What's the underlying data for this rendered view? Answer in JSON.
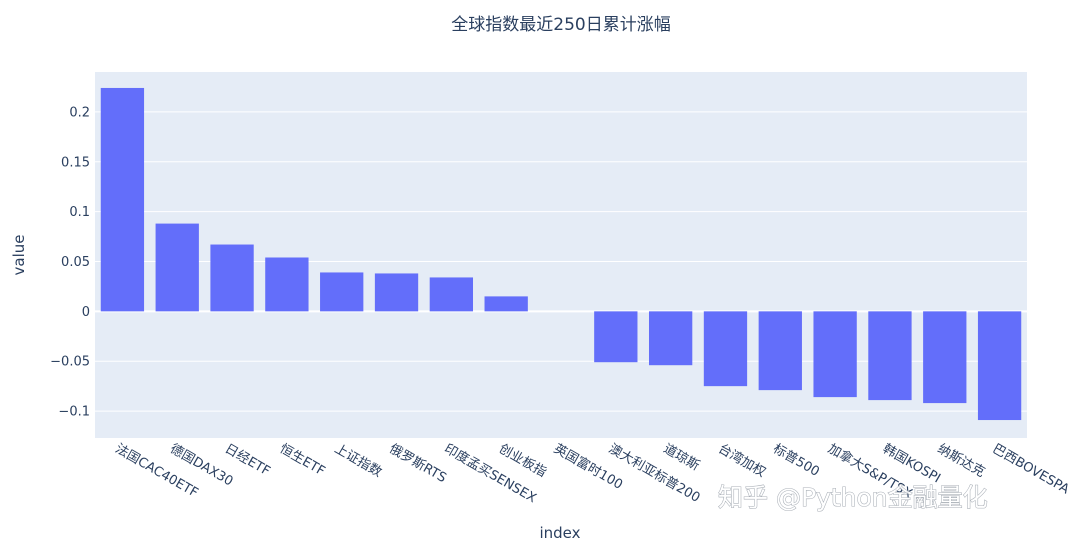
{
  "chart_data": {
    "type": "bar",
    "title": "全球指数最近250日累计涨幅",
    "xlabel": "index",
    "ylabel": "value",
    "categories": [
      "法国CAC40ETF",
      "德国DAX30",
      "日经ETF",
      "恒生ETF",
      "上证指数",
      "俄罗斯RTS",
      "印度孟买SENSEX",
      "创业板指",
      "英国富时100",
      "澳大利亚标普200",
      "道琼斯",
      "台湾加权",
      "标普500",
      "加拿大S&P/TSX",
      "韩国KOSPI",
      "纳斯达克",
      "巴西BOVESPA"
    ],
    "values": [
      0.224,
      0.088,
      0.067,
      0.054,
      0.039,
      0.038,
      0.034,
      0.015,
      0.0,
      -0.051,
      -0.054,
      -0.075,
      -0.079,
      -0.086,
      -0.089,
      -0.092,
      -0.109
    ],
    "ylim": [
      -0.127,
      0.24
    ],
    "yticks": [
      -0.1,
      -0.05,
      0,
      0.05,
      0.1,
      0.15,
      0.2
    ],
    "ytick_labels": [
      "−0.1",
      "−0.05",
      "0",
      "0.05",
      "0.1",
      "0.15",
      "0.2"
    ],
    "grid": true,
    "bar_color": "#636efa",
    "plot_bg": "#e5ecf6",
    "text_color": "#2a3f5f"
  },
  "watermark": "知乎 @Python金融量化"
}
